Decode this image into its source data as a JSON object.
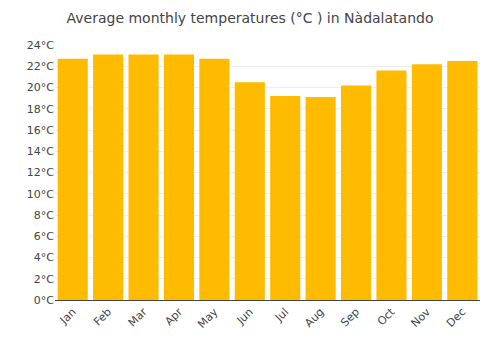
{
  "chart_data": {
    "type": "bar",
    "title": "Average monthly temperatures (°C ) in Nà​dalatando",
    "categories": [
      "Jan",
      "Feb",
      "Mar",
      "Apr",
      "May",
      "Jun",
      "Jul",
      "Aug",
      "Sep",
      "Oct",
      "Nov",
      "Dec"
    ],
    "values": [
      22.7,
      23.1,
      23.1,
      23.1,
      22.7,
      20.5,
      19.2,
      19.1,
      20.2,
      21.6,
      22.2,
      22.5
    ],
    "color": "#FFBB00",
    "ylim": [
      0,
      24
    ],
    "yticks": [
      {
        "value": 0,
        "label": "0°C"
      },
      {
        "value": 2,
        "label": "2°C"
      },
      {
        "value": 4,
        "label": "4°C"
      },
      {
        "value": 6,
        "label": "6°C"
      },
      {
        "value": 8,
        "label": "8°C"
      },
      {
        "value": 10,
        "label": "10°C"
      },
      {
        "value": 12,
        "label": "12°C"
      },
      {
        "value": 14,
        "label": "14°C"
      },
      {
        "value": 16,
        "label": "16°C"
      },
      {
        "value": 18,
        "label": "18°C"
      },
      {
        "value": 20,
        "label": "20°C"
      },
      {
        "value": 22,
        "label": "22°C"
      },
      {
        "value": 24,
        "label": "24°C"
      }
    ],
    "grid": true
  }
}
